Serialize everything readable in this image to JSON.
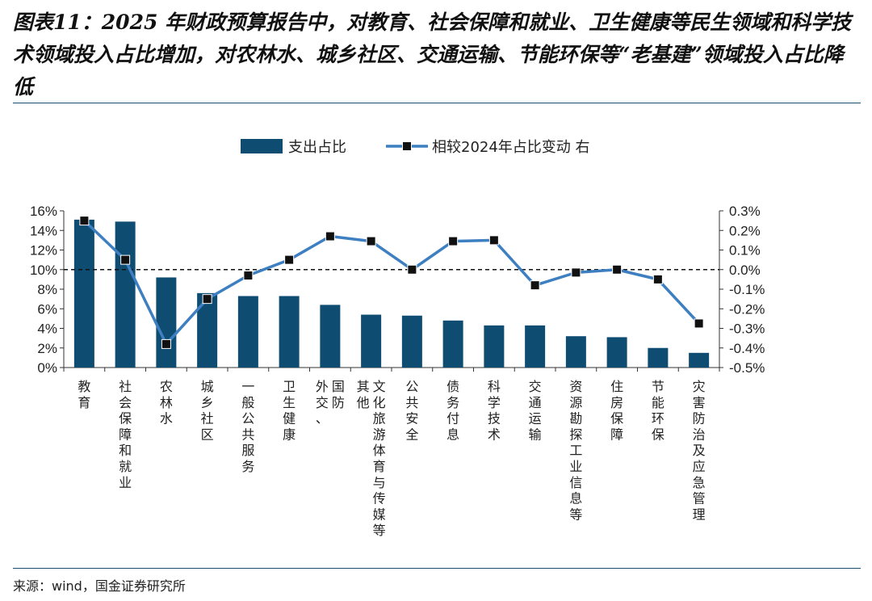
{
  "figure": {
    "title": "图表11：2025 年财政预算报告中，对教育、社会保障和就业、卫生健康等民生领域和科学技术领域投入占比增加，对农林水、城乡社区、交通运输、节能环保等“老基建”领域投入占比降低",
    "source": "来源：wind，国金证券研究所"
  },
  "colors": {
    "bar": "#0e4c72",
    "line": "#3d7fc1",
    "marker_fill": "#111111",
    "axis_text": "#222222"
  },
  "chart_data": {
    "type": "bar",
    "categories": [
      "教育",
      "社会保障和就业",
      "农林水",
      "城乡社区",
      "一般公共服务",
      "卫生健康",
      "外交、国防",
      "文化旅游体育与传媒等其他",
      "公共安全",
      "债务付息",
      "科学技术",
      "交通运输",
      "资源勘探工业信息等",
      "住房保障",
      "节能环保",
      "灾害防治及应急管理"
    ],
    "category_lines": [
      [
        "教育"
      ],
      [
        "社会保障和就业"
      ],
      [
        "农林水"
      ],
      [
        "城乡社区"
      ],
      [
        "一般公共服务"
      ],
      [
        "卫生健康"
      ],
      [
        "外交、",
        "国防"
      ],
      [
        "其他",
        "文化旅游体育与传媒等"
      ],
      [
        "公共安全"
      ],
      [
        "债务付息"
      ],
      [
        "科学技术"
      ],
      [
        "交通运输"
      ],
      [
        "资源勘探工业信息等"
      ],
      [
        "住房保障"
      ],
      [
        "节能环保"
      ],
      [
        "灾害防治及应急管理"
      ]
    ],
    "series": [
      {
        "name": "支出占比",
        "type": "bar",
        "axis": "left",
        "values": [
          15.1,
          14.9,
          9.2,
          7.6,
          7.3,
          7.3,
          6.4,
          5.4,
          5.3,
          4.8,
          4.3,
          4.3,
          3.2,
          3.1,
          2.0,
          1.5
        ]
      },
      {
        "name": "相较2024年占比变动 右",
        "type": "line",
        "axis": "right",
        "values": [
          0.25,
          0.05,
          -0.38,
          -0.15,
          -0.03,
          0.05,
          0.17,
          0.145,
          0.0,
          0.145,
          0.15,
          -0.08,
          -0.015,
          0.0,
          -0.05,
          -0.275
        ]
      }
    ],
    "y_left": {
      "min": 0,
      "max": 16,
      "step": 2,
      "ticks": [
        "0%",
        "2%",
        "4%",
        "6%",
        "8%",
        "10%",
        "12%",
        "14%",
        "16%"
      ]
    },
    "y_right": {
      "min": -0.5,
      "max": 0.3,
      "step": 0.1,
      "ticks": [
        "-0.5%",
        "-0.4%",
        "-0.3%",
        "-0.2%",
        "-0.1%",
        "0.0%",
        "0.1%",
        "0.2%",
        "0.3%"
      ]
    },
    "reference_line": {
      "axis": "right",
      "value": 0.0,
      "style": "dashed"
    },
    "legend": "top",
    "grid": false
  }
}
